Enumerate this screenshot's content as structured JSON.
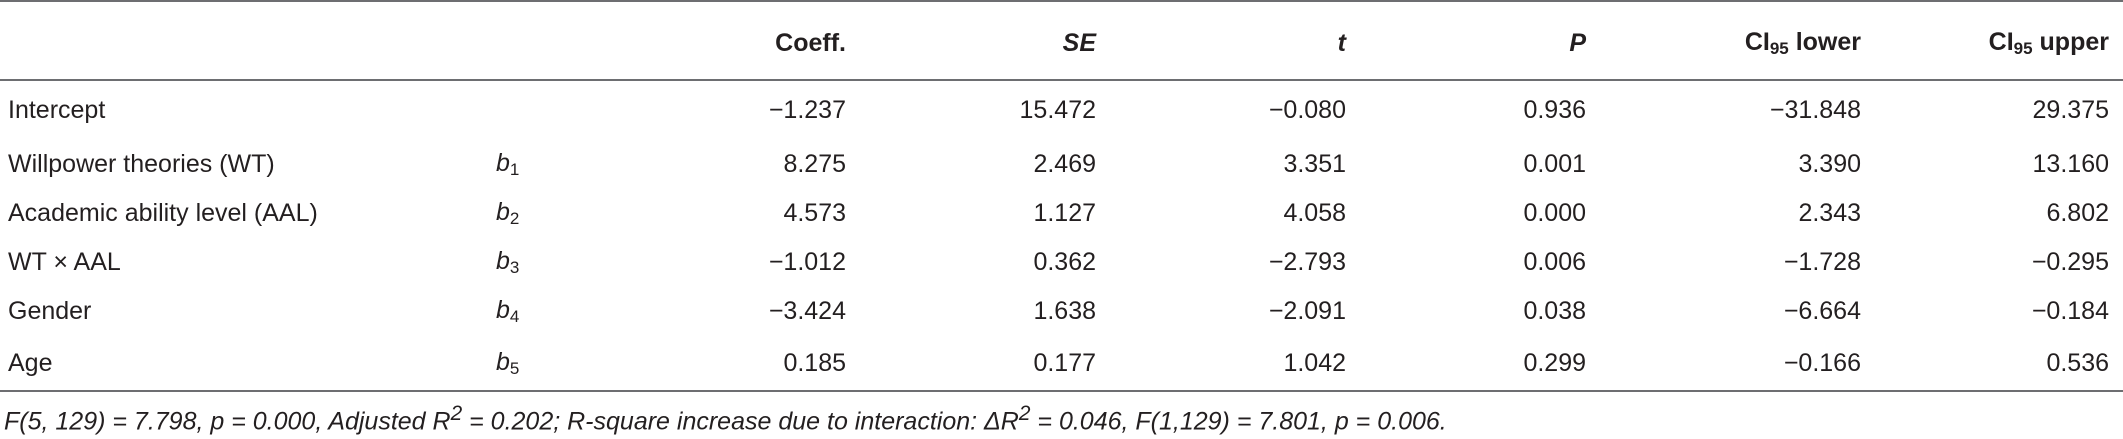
{
  "headers": {
    "coeff": "Coeff.",
    "se": "SE",
    "t": "t",
    "p": "P",
    "ci_lower_prefix": "CI",
    "ci_lower_sub": "95",
    "ci_lower_suffix": " lower",
    "ci_upper_prefix": "CI",
    "ci_upper_sub": "95",
    "ci_upper_suffix": " upper"
  },
  "rows": [
    {
      "name": "Intercept",
      "sym": "",
      "sym_sub": "",
      "coeff": "−1.237",
      "se": "15.472",
      "t": "−0.080",
      "p": "0.936",
      "lower": "−31.848",
      "upper": "29.375"
    },
    {
      "name": "Willpower theories (WT)",
      "sym": "b",
      "sym_sub": "1",
      "coeff": "8.275",
      "se": "2.469",
      "t": "3.351",
      "p": "0.001",
      "lower": "3.390",
      "upper": "13.160"
    },
    {
      "name": "Academic ability level (AAL)",
      "sym": "b",
      "sym_sub": "2",
      "coeff": "4.573",
      "se": "1.127",
      "t": "4.058",
      "p": "0.000",
      "lower": "2.343",
      "upper": "6.802"
    },
    {
      "name": "WT × AAL",
      "sym": "b",
      "sym_sub": "3",
      "coeff": "−1.012",
      "se": "0.362",
      "t": "−2.793",
      "p": "0.006",
      "lower": "−1.728",
      "upper": "−0.295"
    },
    {
      "name": "Gender",
      "sym": "b",
      "sym_sub": "4",
      "coeff": "−3.424",
      "se": "1.638",
      "t": "−2.091",
      "p": "0.038",
      "lower": "−6.664",
      "upper": "−0.184"
    },
    {
      "name": "Age",
      "sym": "b",
      "sym_sub": "5",
      "coeff": "0.185",
      "se": "0.177",
      "t": "1.042",
      "p": "0.299",
      "lower": "−0.166",
      "upper": "0.536"
    }
  ],
  "footnote": {
    "part1": "F(5, 129) = 7.798, p = 0.000, Adjusted R",
    "sup1": "2",
    "part2": " = 0.202; R-square increase due to interaction: ΔR",
    "sup2": "2",
    "part3": " = 0.046, F(1,129) = 7.801, p = 0.006."
  }
}
